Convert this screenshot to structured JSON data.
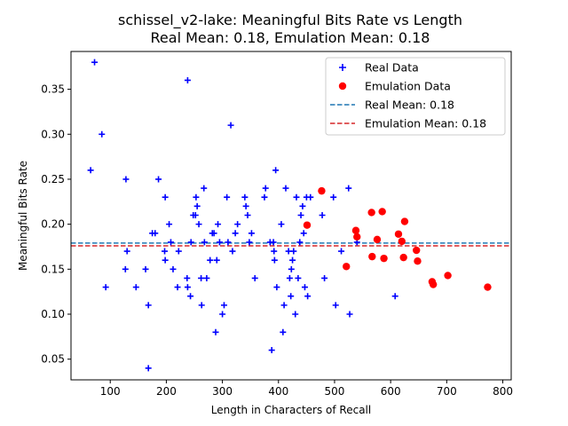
{
  "chart_data": {
    "type": "scatter",
    "title_line1": "schissel_v2-lake: Meaningful Bits Rate vs Length",
    "title_line2": "Real Mean: 0.18, Emulation Mean: 0.18",
    "xlabel": "Length in Characters of Recall",
    "ylabel": "Meaningful Bits Rate",
    "xlim": [
      30,
      815
    ],
    "ylim": [
      0.027,
      0.392
    ],
    "xticks": [
      100,
      200,
      300,
      400,
      500,
      600,
      700,
      800
    ],
    "yticks": [
      0.05,
      0.1,
      0.15,
      0.2,
      0.25,
      0.3,
      0.35
    ],
    "ytick_labels": [
      "0.05",
      "0.10",
      "0.15",
      "0.20",
      "0.25",
      "0.30",
      "0.35"
    ],
    "legend_position": "upper right",
    "series": [
      {
        "name": "Real Data",
        "marker": "plus",
        "color": "#0000ff",
        "points": [
          [
            72,
            0.38
          ],
          [
            85,
            0.3
          ],
          [
            65,
            0.26
          ],
          [
            92,
            0.13
          ],
          [
            128,
            0.25
          ],
          [
            130,
            0.17
          ],
          [
            127,
            0.15
          ],
          [
            146,
            0.13
          ],
          [
            163,
            0.15
          ],
          [
            168,
            0.11
          ],
          [
            168,
            0.04
          ],
          [
            175,
            0.19
          ],
          [
            180,
            0.19
          ],
          [
            186,
            0.25
          ],
          [
            198,
            0.23
          ],
          [
            197,
            0.17
          ],
          [
            198,
            0.16
          ],
          [
            205,
            0.2
          ],
          [
            208,
            0.18
          ],
          [
            212,
            0.15
          ],
          [
            220,
            0.13
          ],
          [
            222,
            0.17
          ],
          [
            238,
            0.36
          ],
          [
            237,
            0.14
          ],
          [
            238,
            0.13
          ],
          [
            243,
            0.12
          ],
          [
            244,
            0.18
          ],
          [
            248,
            0.21
          ],
          [
            252,
            0.21
          ],
          [
            253,
            0.23
          ],
          [
            255,
            0.22
          ],
          [
            258,
            0.2
          ],
          [
            262,
            0.14
          ],
          [
            263,
            0.11
          ],
          [
            267,
            0.24
          ],
          [
            268,
            0.18
          ],
          [
            272,
            0.14
          ],
          [
            278,
            0.16
          ],
          [
            282,
            0.19
          ],
          [
            285,
            0.19
          ],
          [
            288,
            0.08
          ],
          [
            290,
            0.16
          ],
          [
            292,
            0.2
          ],
          [
            295,
            0.18
          ],
          [
            300,
            0.1
          ],
          [
            303,
            0.11
          ],
          [
            308,
            0.23
          ],
          [
            310,
            0.18
          ],
          [
            315,
            0.31
          ],
          [
            318,
            0.17
          ],
          [
            323,
            0.19
          ],
          [
            327,
            0.2
          ],
          [
            340,
            0.23
          ],
          [
            342,
            0.22
          ],
          [
            345,
            0.21
          ],
          [
            348,
            0.18
          ],
          [
            352,
            0.19
          ],
          [
            358,
            0.14
          ],
          [
            375,
            0.23
          ],
          [
            377,
            0.24
          ],
          [
            385,
            0.18
          ],
          [
            388,
            0.06
          ],
          [
            391,
            0.18
          ],
          [
            392,
            0.17
          ],
          [
            393,
            0.16
          ],
          [
            395,
            0.26
          ],
          [
            397,
            0.13
          ],
          [
            405,
            0.2
          ],
          [
            408,
            0.08
          ],
          [
            410,
            0.11
          ],
          [
            413,
            0.24
          ],
          [
            418,
            0.17
          ],
          [
            420,
            0.14
          ],
          [
            422,
            0.12
          ],
          [
            423,
            0.15
          ],
          [
            425,
            0.16
          ],
          [
            427,
            0.17
          ],
          [
            430,
            0.1
          ],
          [
            432,
            0.23
          ],
          [
            435,
            0.14
          ],
          [
            438,
            0.18
          ],
          [
            440,
            0.21
          ],
          [
            443,
            0.22
          ],
          [
            445,
            0.19
          ],
          [
            447,
            0.13
          ],
          [
            450,
            0.23
          ],
          [
            452,
            0.12
          ],
          [
            457,
            0.23
          ],
          [
            478,
            0.21
          ],
          [
            482,
            0.14
          ],
          [
            498,
            0.23
          ],
          [
            502,
            0.11
          ],
          [
            512,
            0.17
          ],
          [
            525,
            0.24
          ],
          [
            527,
            0.1
          ],
          [
            540,
            0.18
          ],
          [
            608,
            0.12
          ]
        ]
      },
      {
        "name": "Emulation Data",
        "marker": "circle",
        "color": "#ff0000",
        "points": [
          [
            451,
            0.199
          ],
          [
            477,
            0.237
          ],
          [
            521,
            0.153
          ],
          [
            538,
            0.193
          ],
          [
            540,
            0.186
          ],
          [
            566,
            0.213
          ],
          [
            567,
            0.164
          ],
          [
            576,
            0.183
          ],
          [
            585,
            0.214
          ],
          [
            588,
            0.162
          ],
          [
            614,
            0.189
          ],
          [
            620,
            0.181
          ],
          [
            623,
            0.163
          ],
          [
            625,
            0.203
          ],
          [
            646,
            0.171
          ],
          [
            648,
            0.159
          ],
          [
            674,
            0.136
          ],
          [
            676,
            0.133
          ],
          [
            702,
            0.143
          ],
          [
            773,
            0.13
          ]
        ]
      }
    ],
    "reference_lines": [
      {
        "name": "Real Mean: 0.18",
        "y": 0.179,
        "color": "#1f77b4",
        "style": "dashed"
      },
      {
        "name": "Emulation Mean: 0.18",
        "y": 0.176,
        "color": "#d62728",
        "style": "dashed"
      }
    ]
  }
}
